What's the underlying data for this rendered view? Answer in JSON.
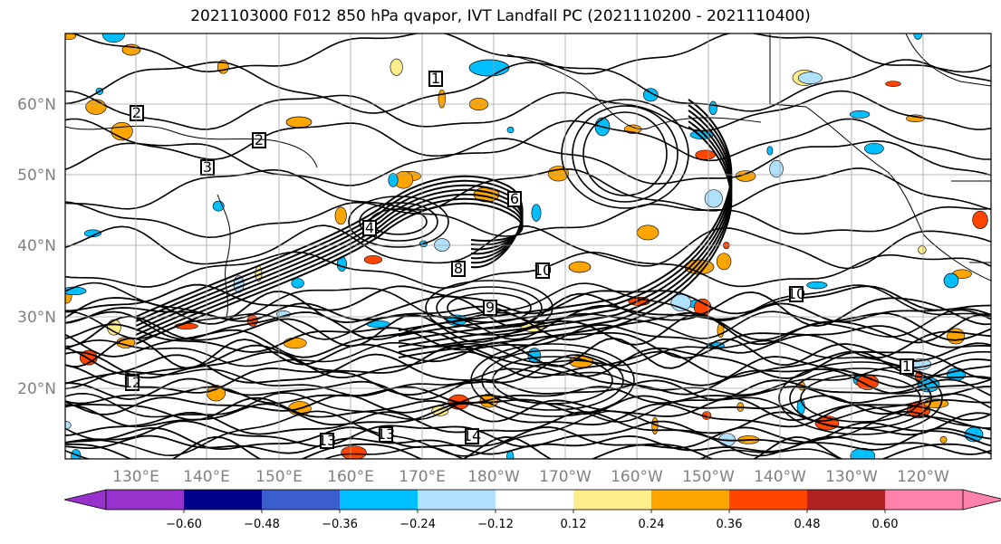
{
  "title": "2021103000 F012 850 hPa qvapor, IVT Landfall PC (2021110200 - 2021110400)",
  "map": {
    "lat_labels": [
      "60°N",
      "50°N",
      "40°N",
      "30°N",
      "20°N"
    ],
    "lon_labels": [
      "130°E",
      "140°E",
      "150°E",
      "160°E",
      "170°E",
      "180°W",
      "170°W",
      "160°W",
      "150°W",
      "140°W",
      "130°W",
      "120°W"
    ],
    "contour_labels": [
      "1",
      "2",
      "3",
      "4",
      "8",
      "10",
      "12",
      "13",
      "14",
      "1",
      "2",
      "6",
      "9",
      "10",
      "13"
    ]
  },
  "colorbar": {
    "colors": [
      "#9932cc",
      "#00008b",
      "#3a5fcd",
      "#00bfff",
      "#b0e2ff",
      "#ffffff",
      "#ffec8b",
      "#ffa500",
      "#ff4500",
      "#b22222",
      "#ff82ab"
    ],
    "ticks": [
      "−0.60",
      "−0.48",
      "−0.36",
      "−0.24",
      "−0.12",
      "0.12",
      "0.24",
      "0.36",
      "0.48",
      "0.60"
    ]
  }
}
